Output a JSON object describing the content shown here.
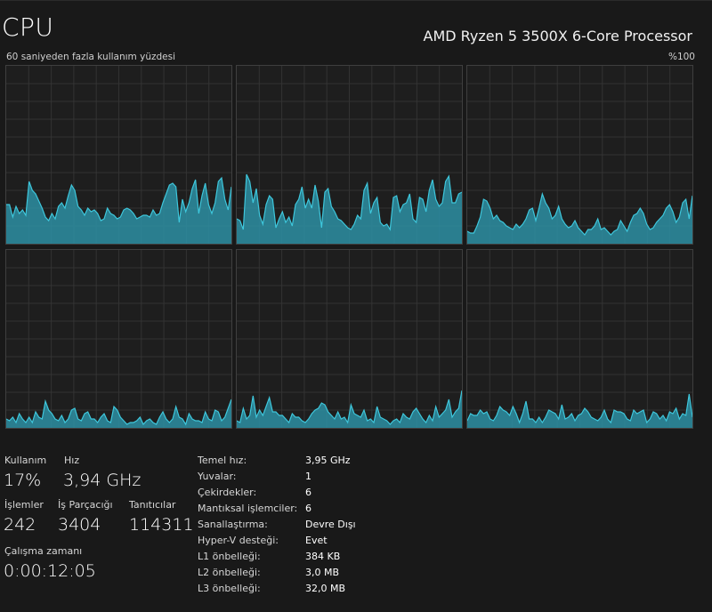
{
  "header": {
    "title": "CPU",
    "processor": "AMD Ryzen 5 3500X 6-Core Processor",
    "caption": "60 saniyeden fazla kullanım yüzdesi",
    "max_label": "%100"
  },
  "colors": {
    "background": "#191919",
    "grid": "#333333",
    "graph_border": "#3f3f3f",
    "graph_fill": "#2d8fa3",
    "graph_line": "#3ec7dc"
  },
  "chart_data": {
    "type": "area",
    "ylim": [
      0,
      100
    ],
    "series": [
      {
        "values": [
          22,
          22,
          15,
          21,
          17,
          19,
          16,
          35,
          30,
          28,
          24,
          20,
          15,
          13,
          17,
          14,
          21,
          23,
          20,
          27,
          33,
          30,
          21,
          19,
          16,
          20,
          18,
          19,
          17,
          13,
          14,
          20,
          17,
          16,
          14,
          15,
          19,
          20,
          19,
          17,
          14,
          15,
          16,
          16,
          15,
          19,
          16,
          17,
          23,
          28,
          33,
          34,
          32,
          12,
          25,
          18,
          23,
          31,
          36,
          17,
          27,
          34,
          22,
          17,
          23,
          35,
          37,
          25,
          19,
          32
        ]
      },
      {
        "values": [
          14,
          13,
          8,
          39,
          35,
          23,
          31,
          16,
          11,
          22,
          27,
          25,
          9,
          14,
          18,
          12,
          15,
          10,
          22,
          25,
          32,
          20,
          25,
          20,
          33,
          24,
          9,
          29,
          31,
          21,
          18,
          14,
          13,
          11,
          9,
          8,
          11,
          16,
          14,
          30,
          34,
          17,
          23,
          26,
          12,
          10,
          11,
          8,
          26,
          27,
          18,
          22,
          23,
          28,
          14,
          12,
          26,
          25,
          18,
          30,
          36,
          25,
          21,
          23,
          35,
          38,
          23,
          23,
          28,
          29
        ]
      },
      {
        "values": [
          7,
          6,
          6,
          10,
          15,
          25,
          24,
          20,
          14,
          16,
          13,
          12,
          10,
          9,
          8,
          11,
          9,
          11,
          14,
          19,
          20,
          13,
          20,
          28,
          23,
          20,
          14,
          16,
          21,
          14,
          11,
          9,
          10,
          13,
          9,
          7,
          5,
          8,
          8,
          10,
          14,
          8,
          9,
          7,
          5,
          7,
          8,
          13,
          10,
          7,
          12,
          16,
          17,
          20,
          17,
          11,
          8,
          9,
          12,
          14,
          16,
          20,
          22,
          18,
          12,
          15,
          23,
          25,
          14,
          27
        ]
      },
      {
        "values": [
          5,
          4,
          6,
          3,
          8,
          5,
          3,
          6,
          3,
          9,
          6,
          5,
          15,
          10,
          8,
          5,
          4,
          7,
          3,
          5,
          10,
          11,
          5,
          4,
          8,
          9,
          5,
          5,
          3,
          6,
          8,
          4,
          3,
          12,
          10,
          6,
          4,
          2,
          3,
          3,
          4,
          6,
          2,
          4,
          5,
          3,
          2,
          6,
          9,
          5,
          3,
          5,
          12,
          6,
          5,
          2,
          8,
          5,
          4,
          4,
          3,
          9,
          5,
          4,
          10,
          9,
          4,
          6,
          11,
          16
        ]
      },
      {
        "values": [
          4,
          3,
          11,
          5,
          7,
          18,
          6,
          10,
          7,
          12,
          17,
          9,
          9,
          7,
          7,
          5,
          3,
          8,
          6,
          6,
          4,
          3,
          5,
          8,
          10,
          11,
          14,
          13,
          9,
          7,
          5,
          9,
          5,
          6,
          3,
          13,
          8,
          7,
          6,
          10,
          4,
          5,
          3,
          12,
          6,
          5,
          4,
          2,
          4,
          5,
          3,
          8,
          6,
          5,
          9,
          11,
          8,
          5,
          3,
          7,
          4,
          12,
          6,
          8,
          10,
          16,
          6,
          9,
          11,
          21
        ]
      },
      {
        "values": [
          4,
          8,
          7,
          7,
          10,
          8,
          9,
          5,
          4,
          7,
          12,
          10,
          9,
          7,
          12,
          8,
          3,
          8,
          15,
          5,
          5,
          3,
          6,
          3,
          6,
          10,
          9,
          8,
          5,
          13,
          5,
          6,
          8,
          4,
          7,
          8,
          11,
          9,
          6,
          5,
          4,
          6,
          10,
          5,
          3,
          10,
          9,
          9,
          8,
          5,
          4,
          10,
          8,
          9,
          10,
          3,
          5,
          9,
          8,
          5,
          7,
          4,
          9,
          8,
          11,
          5,
          8,
          7,
          19,
          6
        ]
      }
    ]
  },
  "stats": {
    "usage_label": "Kullanım",
    "usage_value": "17%",
    "speed_label": "Hız",
    "speed_value": "3,94 GHz",
    "processes_label": "İşlemler",
    "processes_value": "242",
    "threads_label": "İş Parçacığı",
    "threads_value": "3404",
    "handles_label": "Tanıtıcılar",
    "handles_value": "114311",
    "uptime_label": "Çalışma zamanı",
    "uptime_value": "0:00:12:05"
  },
  "info": {
    "base_speed_label": "Temel hız:",
    "base_speed_value": "3,95 GHz",
    "sockets_label": "Yuvalar:",
    "sockets_value": "1",
    "cores_label": "Çekirdekler:",
    "cores_value": "6",
    "logical_label": "Mantıksal işlemciler:",
    "logical_value": "6",
    "virtualization_label": "Sanallaştırma:",
    "virtualization_value": "Devre Dışı",
    "hyperv_label": "Hyper-V desteği:",
    "hyperv_value": "Evet",
    "l1_label": "L1 önbelleği:",
    "l1_value": "384 KB",
    "l2_label": "L2 önbelleği:",
    "l2_value": "3,0 MB",
    "l3_label": "L3 önbelleği:",
    "l3_value": "32,0 MB"
  }
}
